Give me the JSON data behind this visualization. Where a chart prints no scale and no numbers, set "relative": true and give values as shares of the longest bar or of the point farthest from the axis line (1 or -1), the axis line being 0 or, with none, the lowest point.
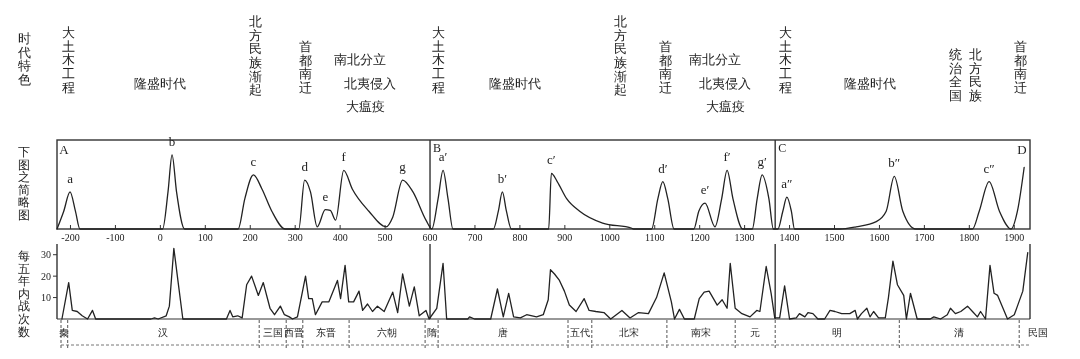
{
  "chart_data": [
    {
      "type": "line",
      "title": "时代特色",
      "ylabel": "下图之简略图",
      "relative": true,
      "xlim": [
        -230,
        1935
      ],
      "xticks": [
        -200,
        -100,
        0,
        100,
        200,
        300,
        400,
        500,
        600,
        700,
        800,
        900,
        1000,
        1100,
        1200,
        1300,
        1400,
        1500,
        1600,
        1700,
        1800,
        1900
      ],
      "tick_labels": "x",
      "color": "#222222",
      "x": [
        -230,
        -215,
        -201,
        -189,
        -179,
        5,
        17,
        26,
        36,
        54,
        173,
        188,
        207,
        226,
        248,
        278,
        308,
        321,
        334,
        349,
        367,
        378,
        390,
        408,
        427,
        464,
        502,
        517,
        539,
        562,
        591,
        604,
        618,
        629,
        640,
        651,
        741,
        752,
        761,
        770,
        781,
        864,
        870,
        883,
        904,
        933,
        984,
        1049,
        1053,
        1093,
        1107,
        1118,
        1129,
        1143,
        1187,
        1198,
        1212,
        1234,
        1249,
        1261,
        1274,
        1296,
        1317,
        1328,
        1339,
        1354,
        1364,
        1374,
        1385,
        1394,
        1404,
        1411,
        1511,
        1548,
        1593,
        1615,
        1633,
        1652,
        1681,
        1807,
        1822,
        1844,
        1867,
        1893,
        1907,
        1922
      ],
      "values": [
        0,
        0.24,
        0.5,
        0.24,
        0,
        0,
        0.5,
        1,
        0.5,
        0,
        0,
        0.41,
        0.73,
        0.54,
        0.24,
        0,
        0,
        0.66,
        0.5,
        0.03,
        0.26,
        0.25,
        0.12,
        0.79,
        0.54,
        0.24,
        0.03,
        0.16,
        0.66,
        0.5,
        0.12,
        0,
        0.41,
        0.79,
        0.41,
        0,
        0,
        0.24,
        0.5,
        0.24,
        0,
        0,
        0.75,
        0.64,
        0.41,
        0.24,
        0.08,
        0.01,
        0,
        0,
        0.41,
        0.64,
        0.41,
        0,
        0,
        0.24,
        0.35,
        0.03,
        0.41,
        0.79,
        0.41,
        0,
        0,
        0.41,
        0.73,
        0.41,
        0,
        0,
        0.24,
        0.43,
        0.24,
        0,
        0,
        0.03,
        0.1,
        0.24,
        0.71,
        0.24,
        0,
        0,
        0.24,
        0.64,
        0.24,
        0,
        0.24,
        0.83
      ],
      "ref_lines": [
        {
          "axis": "x",
          "value": 600,
          "label": "B"
        },
        {
          "axis": "x",
          "value": 1368,
          "label": "C"
        }
      ],
      "annotations": [
        "大土木工程",
        "隆盛时代",
        "北方民族渐起",
        "首都南迁",
        "南北分立",
        "北夷侵入",
        "大瘟疫",
        "大土木工程",
        "隆盛时代",
        "北方民族渐起",
        "首都南迁",
        "南北分立",
        "北夷侵入",
        "大瘟疫",
        "大土木工程",
        "隆盛时代",
        "统治全国",
        "北方民族",
        "首都南迁",
        "A",
        "D",
        {
          "text": "a",
          "x": -201,
          "y": 0.5
        },
        {
          "text": "b",
          "x": 26,
          "y": 1
        },
        {
          "text": "c",
          "x": 207,
          "y": 0.73
        },
        {
          "text": "d",
          "x": 321,
          "y": 0.66
        },
        {
          "text": "e",
          "x": 367,
          "y": 0.26
        },
        {
          "text": "f",
          "x": 408,
          "y": 0.79
        },
        {
          "text": "g",
          "x": 539,
          "y": 0.66
        },
        {
          "text": "a′",
          "x": 629,
          "y": 0.79
        },
        {
          "text": "b′",
          "x": 761,
          "y": 0.5
        },
        {
          "text": "c′",
          "x": 870,
          "y": 0.75
        },
        {
          "text": "d′",
          "x": 1118,
          "y": 0.64
        },
        {
          "text": "e′",
          "x": 1212,
          "y": 0.35
        },
        {
          "text": "f′",
          "x": 1261,
          "y": 0.79
        },
        {
          "text": "g′",
          "x": 1339,
          "y": 0.73
        },
        {
          "text": "a″",
          "x": 1394,
          "y": 0.43
        },
        {
          "text": "b″",
          "x": 1633,
          "y": 0.71
        },
        {
          "text": "c″",
          "x": 1844,
          "y": 0.64
        }
      ]
    },
    {
      "type": "line",
      "ylabel": "每五年内战次数",
      "xlim": [
        -230,
        1935
      ],
      "ylim": [
        0,
        35
      ],
      "yticks": [
        10,
        20,
        30
      ],
      "tick_labels": "y",
      "color": "#222222",
      "x": [
        -219,
        -204,
        -196,
        -185,
        -174,
        -162,
        -151,
        -144,
        -21,
        -13,
        -5,
        13,
        20,
        30,
        39,
        50,
        147,
        155,
        161,
        172,
        182,
        192,
        203,
        218,
        229,
        239,
        244,
        254,
        267,
        276,
        287,
        294,
        305,
        323,
        330,
        338,
        345,
        360,
        375,
        394,
        401,
        411,
        419,
        430,
        442,
        450,
        461,
        472,
        483,
        498,
        517,
        528,
        539,
        554,
        565,
        576,
        591,
        598,
        615,
        629,
        637,
        684,
        688,
        699,
        735,
        750,
        763,
        775,
        786,
        801,
        815,
        837,
        852,
        863,
        868,
        877,
        888,
        899,
        910,
        925,
        943,
        954,
        969,
        987,
        1002,
        1027,
        1045,
        1064,
        1086,
        1104,
        1121,
        1137,
        1144,
        1155,
        1166,
        1188,
        1199,
        1210,
        1221,
        1239,
        1250,
        1261,
        1268,
        1279,
        1294,
        1312,
        1327,
        1334,
        1348,
        1359,
        1367,
        1378,
        1389,
        1400,
        1415,
        1422,
        1434,
        1441,
        1452,
        1463,
        1478,
        1490,
        1501,
        1516,
        1534,
        1546,
        1551,
        1560,
        1572,
        1579,
        1587,
        1598,
        1613,
        1620,
        1630,
        1640,
        1654,
        1660,
        1669,
        1684,
        1713,
        1721,
        1736,
        1751,
        1758,
        1769,
        1781,
        1796,
        1807,
        1818,
        1825,
        1836,
        1846,
        1855,
        1863,
        1885,
        1900,
        1907,
        1919,
        1930
      ],
      "values": [
        0,
        17,
        4,
        3.5,
        1.5,
        0,
        4,
        0,
        0,
        0.5,
        0,
        1.5,
        6,
        33,
        18,
        0,
        0,
        4,
        1,
        1.5,
        0.5,
        16,
        20,
        11,
        17,
        9,
        5,
        2,
        6,
        2,
        1,
        0,
        1,
        20,
        9.5,
        9.5,
        2,
        8,
        8,
        18,
        9.5,
        25,
        8,
        8,
        13,
        4,
        7,
        3.5,
        6,
        3.5,
        12.5,
        3,
        21,
        6,
        15,
        1.5,
        4,
        0,
        5,
        26,
        0,
        0,
        1,
        0,
        0,
        14,
        1,
        12,
        1,
        0.5,
        2,
        1,
        2,
        9,
        23,
        21,
        18,
        13,
        6.5,
        3.5,
        9.5,
        4,
        3.5,
        3,
        0,
        4,
        0.5,
        3,
        2.5,
        10,
        21.5,
        8,
        0,
        4.5,
        0,
        0,
        9.5,
        12.5,
        13,
        6.5,
        9,
        5,
        26,
        5,
        2.5,
        1,
        4,
        3.5,
        24.5,
        12,
        0.5,
        0.5,
        15.5,
        0,
        0.5,
        2.5,
        1,
        3,
        2.5,
        0,
        0,
        4,
        3.5,
        2.5,
        2.5,
        4,
        0,
        2.5,
        5,
        1,
        3.5,
        0.5,
        0.5,
        10,
        27,
        16,
        11,
        0,
        12,
        0,
        0,
        1,
        0,
        2,
        5,
        2.5,
        3.5,
        6,
        3.5,
        1,
        3.5,
        0,
        25,
        12,
        11,
        0,
        2,
        6,
        13,
        31
      ],
      "ref_lines": [
        {
          "axis": "x",
          "value": 600
        },
        {
          "axis": "x",
          "value": 1368
        }
      ],
      "annotations": [
        "秦",
        "汉",
        "三国",
        "西晋",
        "东晋",
        "六朝",
        "隋",
        "唐",
        "五代",
        "北宋",
        "南宋",
        "元",
        "明",
        "清",
        "民国"
      ]
    }
  ]
}
